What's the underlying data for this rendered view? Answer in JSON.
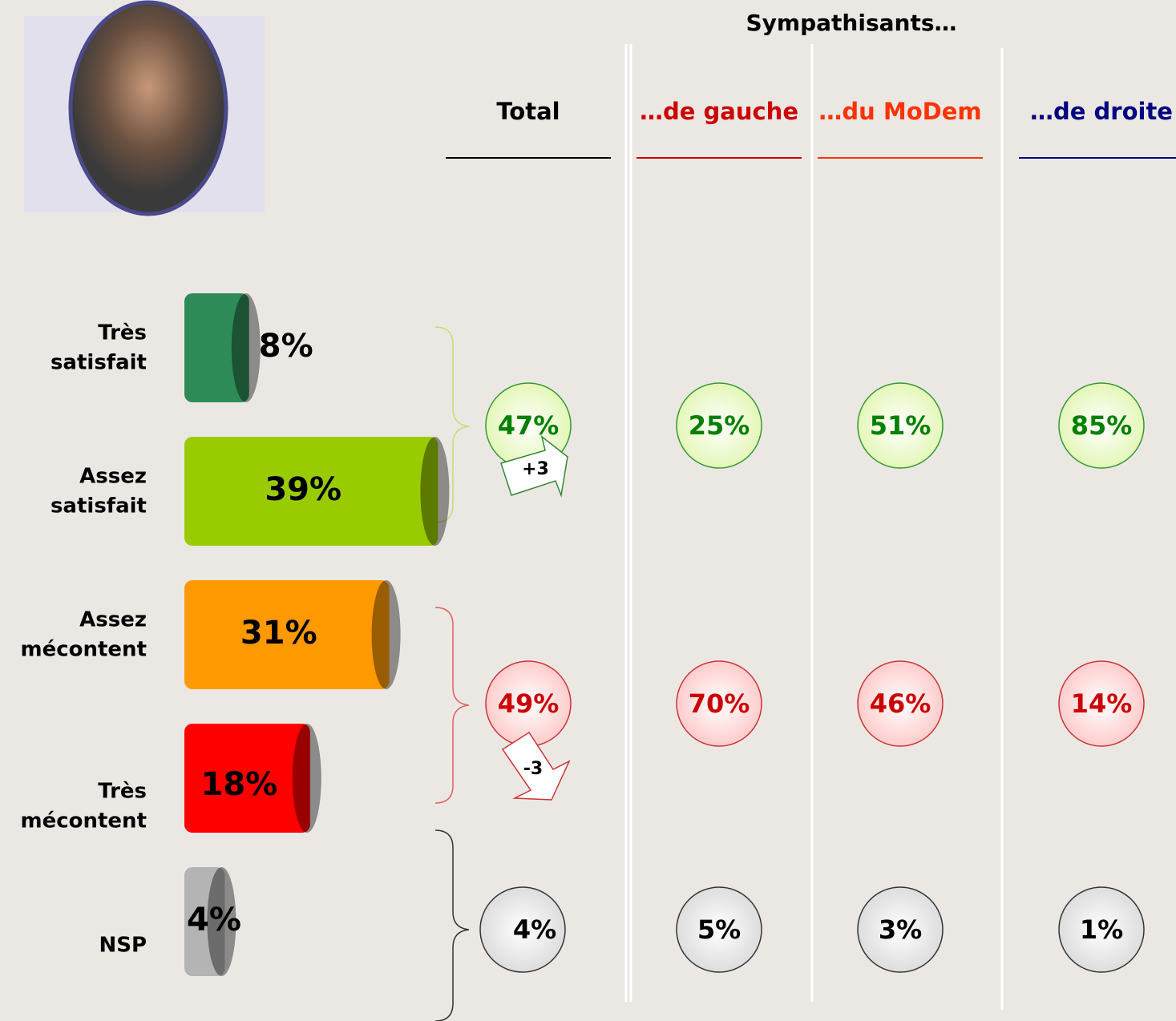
{
  "chart_data": {
    "type": "bar",
    "orientation": "horizontal",
    "categories": [
      "Très satisfait",
      "Assez satisfait",
      "Assez mécontent",
      "Très mécontent",
      "NSP"
    ],
    "values": [
      8,
      39,
      31,
      18,
      4
    ],
    "value_labels": [
      "8%",
      "39%",
      "31%",
      "18%",
      "4%"
    ],
    "colors": [
      "#2e8b57",
      "#99cc00",
      "#ff9900",
      "#ff0000",
      "#b4b4b4"
    ]
  },
  "breakdown": {
    "title": "Sympathisants…",
    "columns": [
      {
        "name": "Total",
        "color": "#000000",
        "satisfied": "47%",
        "dissatisfied": "49%",
        "nsp": "4%"
      },
      {
        "name": "…de gauche",
        "color": "#cc0000",
        "satisfied": "25%",
        "dissatisfied": "70%",
        "nsp": "5%"
      },
      {
        "name": "…du MoDem",
        "color": "#ff3300",
        "satisfied": "51%",
        "dissatisfied": "46%",
        "nsp": "3%"
      },
      {
        "name": "…de droite",
        "color": "#000080",
        "satisfied": "85%",
        "dissatisfied": "14%",
        "nsp": "1%"
      }
    ],
    "changes": [
      "+3",
      "-3"
    ]
  }
}
